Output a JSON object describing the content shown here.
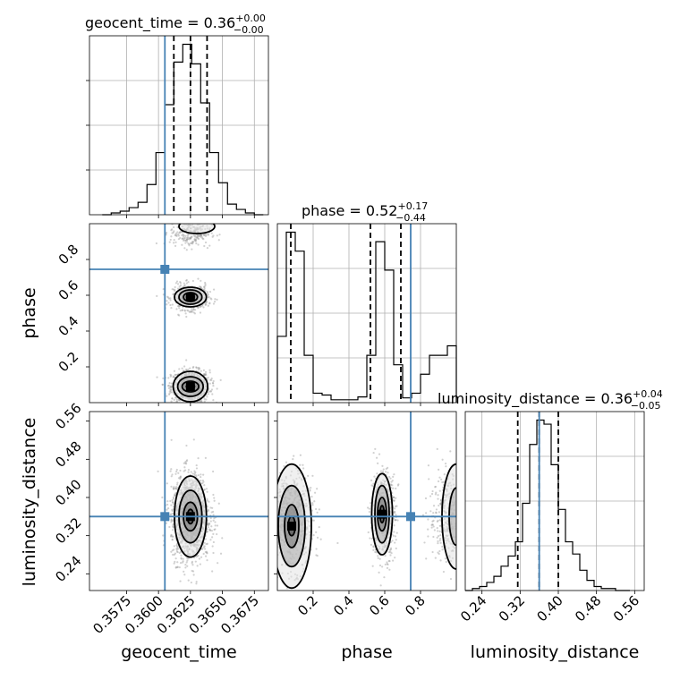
{
  "chart_data": {
    "type": "corner",
    "parameters": [
      "geocent_time",
      "phase",
      "luminosity_distance"
    ],
    "titles": [
      {
        "param": "geocent_time",
        "prefix": "geocent_time = ",
        "median": "0.36",
        "plus": "+0.00",
        "minus": "−0.00"
      },
      {
        "param": "phase",
        "prefix": "phase = ",
        "median": "0.52",
        "plus": "+0.17",
        "minus": "−0.44"
      },
      {
        "param": "luminosity_distance",
        "prefix": "luminosity_distance = ",
        "median": "0.36",
        "plus": "+0.04",
        "minus": "−0.05"
      }
    ],
    "truths": {
      "geocent_time": 0.3605,
      "phase": 0.745,
      "luminosity_distance": 0.36
    },
    "ranges": {
      "geocent_time": [
        0.3546,
        0.3686
      ],
      "phase": [
        0.0,
        1.0
      ],
      "luminosity_distance": [
        0.205,
        0.58
      ]
    },
    "ticks": {
      "geocent_time": {
        "values": [
          0.3575,
          0.36,
          0.3625,
          0.365,
          0.3675
        ],
        "labels": [
          "0.3575",
          "0.3600",
          "0.3625",
          "0.3650",
          "0.3675"
        ]
      },
      "phase": {
        "values": [
          0.2,
          0.4,
          0.6,
          0.8
        ],
        "labels": [
          "0.2",
          "0.4",
          "0.6",
          "0.8"
        ]
      },
      "luminosity_distance": {
        "values": [
          0.24,
          0.32,
          0.4,
          0.48,
          0.56
        ],
        "labels": [
          "0.24",
          "0.32",
          "0.40",
          "0.48",
          "0.56"
        ]
      }
    },
    "quantiles": {
      "geocent_time": [
        0.3612,
        0.3625,
        0.3638
      ],
      "phase": [
        0.075,
        0.52,
        0.69
      ],
      "luminosity_distance": [
        0.315,
        0.36,
        0.4
      ]
    },
    "histograms": {
      "geocent_time": {
        "edges": [
          0.3556,
          0.3563,
          0.357,
          0.3577,
          0.3584,
          0.3591,
          0.3598,
          0.3605,
          0.3612,
          0.3619,
          0.3626,
          0.3633,
          0.364,
          0.3647,
          0.3654,
          0.3661,
          0.3668,
          0.3675,
          0.3682
        ],
        "counts": [
          0,
          1,
          2,
          4,
          7,
          17,
          35,
          62,
          86,
          96,
          85,
          63,
          35,
          18,
          6,
          3,
          1,
          0
        ]
      },
      "phase": {
        "edges": [
          0.0,
          0.05,
          0.1,
          0.15,
          0.2,
          0.25,
          0.3,
          0.35,
          0.4,
          0.45,
          0.5,
          0.55,
          0.6,
          0.65,
          0.7,
          0.75,
          0.8,
          0.85,
          0.9,
          0.95,
          1.0
        ],
        "counts": [
          7,
          18,
          16,
          5,
          1,
          0.8,
          0.3,
          0.3,
          0.3,
          0.6,
          5,
          17,
          14,
          4,
          0.5,
          1,
          3,
          5,
          5,
          6
        ]
      },
      "luminosity_distance": {
        "edges": [
          0.205,
          0.22,
          0.235,
          0.25,
          0.265,
          0.28,
          0.295,
          0.31,
          0.325,
          0.34,
          0.355,
          0.37,
          0.385,
          0.4,
          0.415,
          0.43,
          0.445,
          0.46,
          0.475,
          0.49,
          0.505,
          0.52,
          0.535,
          0.55
        ],
        "counts": [
          0,
          1,
          2,
          4,
          7,
          12,
          17,
          24,
          43,
          72,
          84,
          82,
          62,
          40,
          24,
          18,
          10,
          5,
          2,
          1,
          1,
          0,
          0
        ]
      }
    },
    "xlabel_bottom": [
      "geocent_time",
      "phase",
      "luminosity_distance"
    ],
    "ylabel_left": [
      "phase",
      "luminosity_distance"
    ],
    "colors": {
      "truth": "#4682b4",
      "hist": "#000000",
      "contour": "#000000",
      "points": "#9a9a9a"
    }
  }
}
